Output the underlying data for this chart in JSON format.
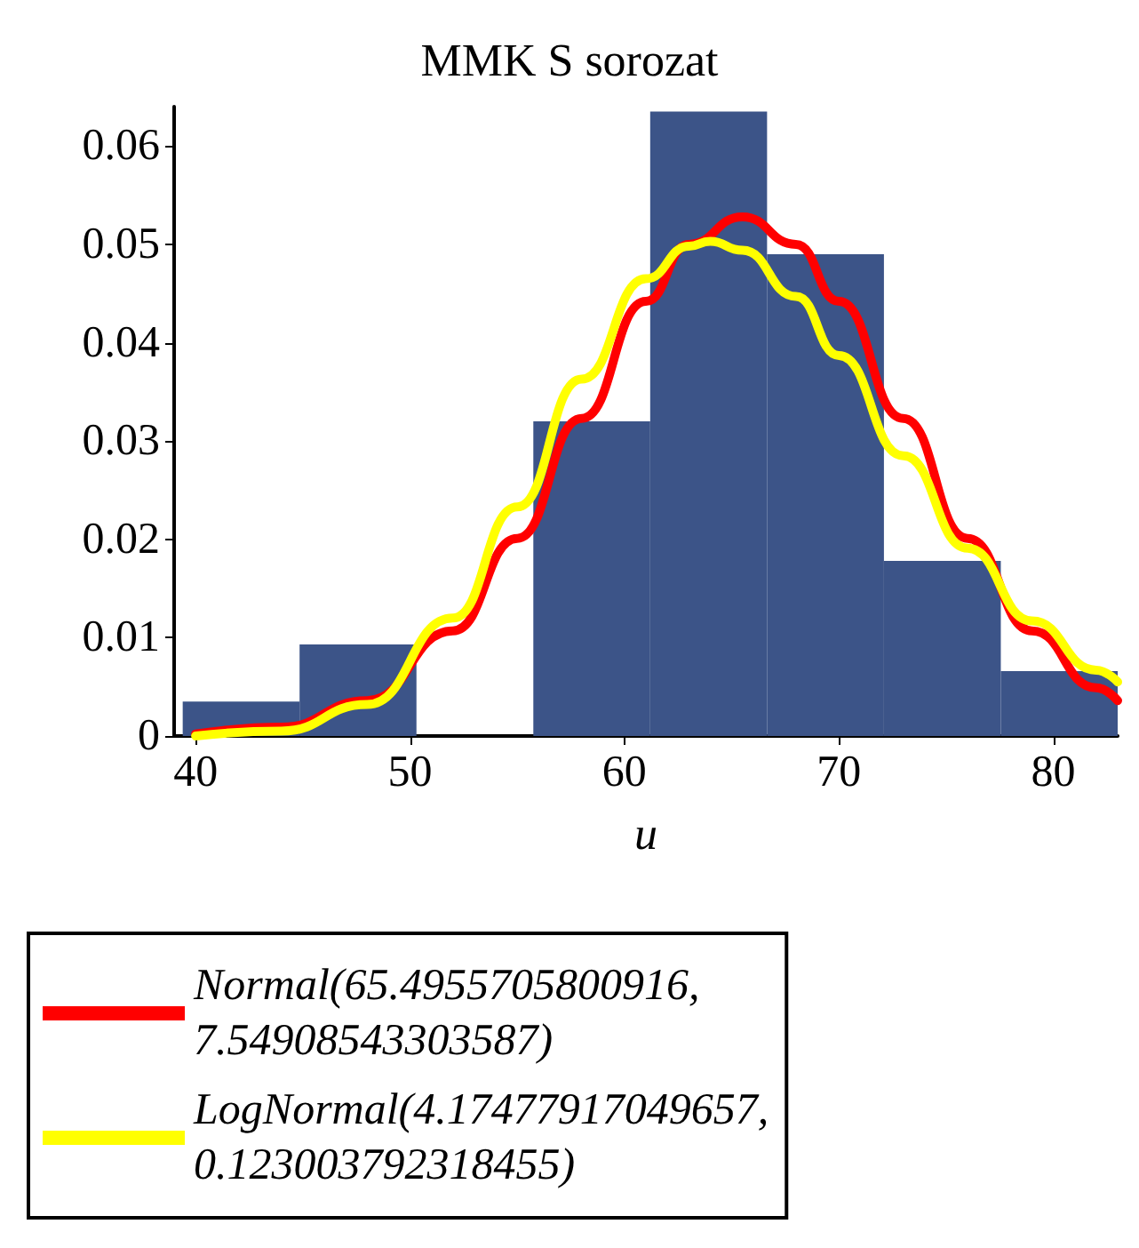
{
  "chart_data": {
    "type": "histogram",
    "title": "MMK S sorozat",
    "xlabel": "u",
    "bins": [
      39.4,
      44.85,
      50.3,
      55.75,
      61.2,
      66.65,
      72.1,
      77.55,
      83.0
    ],
    "values": [
      0.0035,
      0.0093,
      0,
      0.032,
      0.0635,
      0.049,
      0.0178,
      0.0066
    ],
    "color": "#3c5488",
    "series": [
      {
        "name": "Normal(65.4955705800916, 7.54908543303587)",
        "type": "line",
        "color": "#ff0000",
        "x": [
          40,
          44,
          48,
          52,
          55,
          58,
          61,
          63,
          65.5,
          68,
          70,
          73,
          76,
          79,
          82,
          83
        ],
        "values": [
          0.0002,
          0.0009,
          0.0036,
          0.0107,
          0.0201,
          0.0323,
          0.0442,
          0.05,
          0.0528,
          0.05,
          0.0442,
          0.0323,
          0.0201,
          0.0107,
          0.0049,
          0.0036
        ]
      },
      {
        "name": "LogNormal(4.17477917049657, 0.123003792318455)",
        "type": "line",
        "color": "#ffff00",
        "x": [
          40,
          44,
          48,
          52,
          55,
          58,
          61,
          63,
          64,
          65.5,
          68,
          70,
          73,
          76,
          79,
          82,
          83
        ],
        "values": [
          0.0,
          0.0005,
          0.0032,
          0.012,
          0.0233,
          0.0363,
          0.0465,
          0.0498,
          0.0503,
          0.0494,
          0.0447,
          0.0387,
          0.0285,
          0.0191,
          0.0117,
          0.0067,
          0.0055
        ]
      }
    ],
    "xlim": [
      39,
      83
    ],
    "xticks": [
      40,
      50,
      60,
      70,
      80
    ],
    "ylim": [
      0,
      0.064
    ],
    "yticks": [
      0,
      0.01,
      0.02,
      0.03,
      0.04,
      0.05,
      0.06
    ],
    "grid": false,
    "legend": "bottom",
    "marker": "none",
    "line_style": "solid"
  }
}
